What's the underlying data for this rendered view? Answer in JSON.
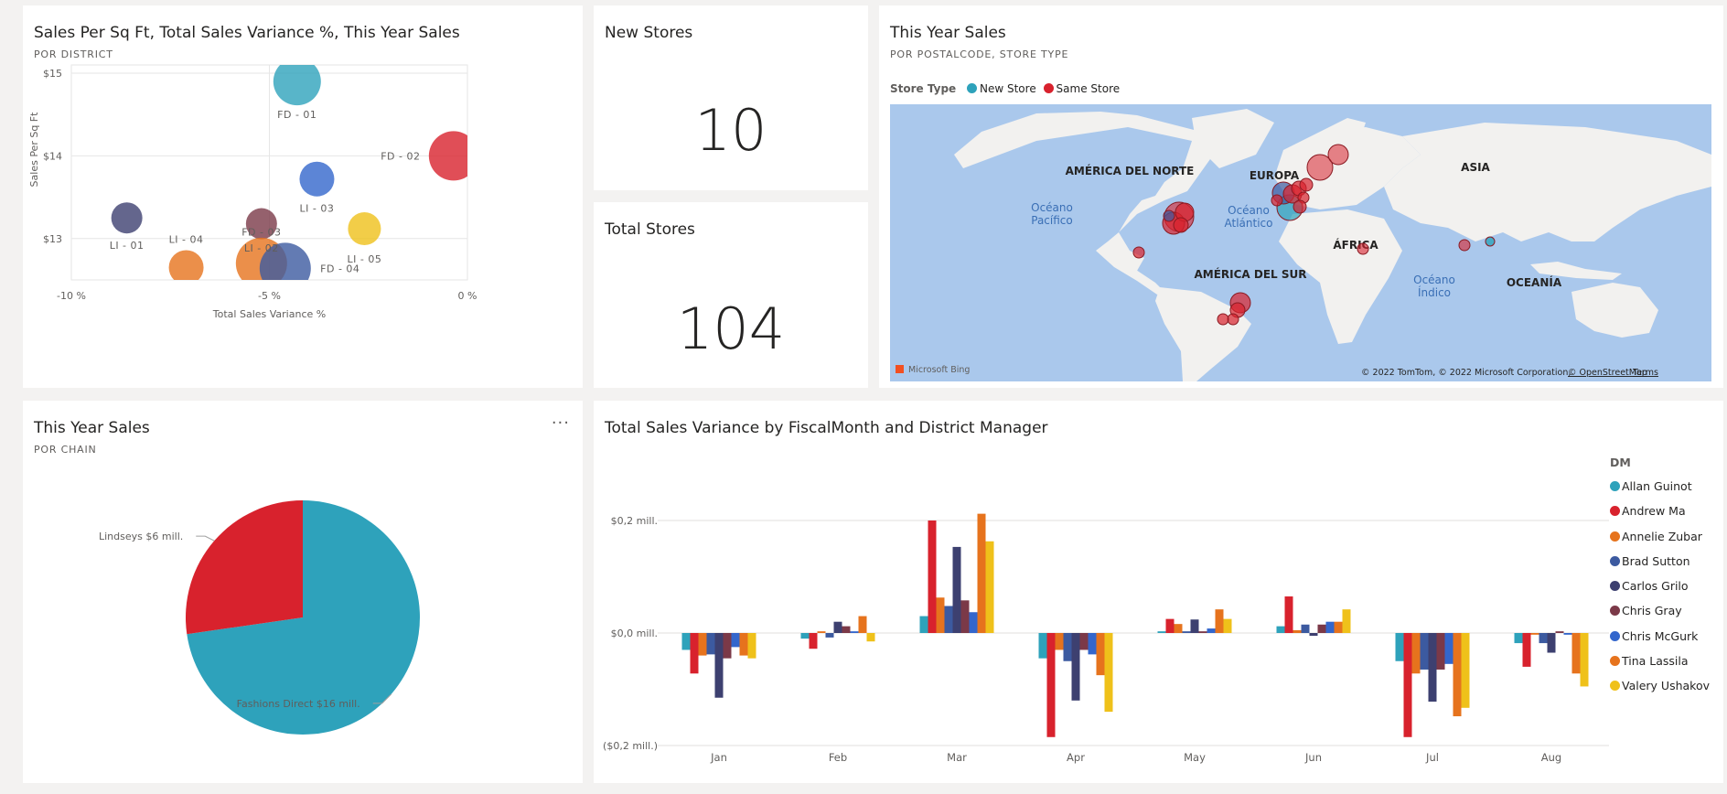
{
  "scatter_tile": {
    "title": "Sales Per Sq Ft, Total Sales Variance %, This Year Sales",
    "subtitle": "POR DISTRICT"
  },
  "new_stores": {
    "title": "New Stores",
    "value": "10"
  },
  "total_stores": {
    "title": "Total Stores",
    "value": "104"
  },
  "map_tile": {
    "title": "This Year Sales",
    "subtitle": "POR POSTALCODE, STORE TYPE",
    "legend_title": "Store Type",
    "legend_items": [
      {
        "label": "New Store",
        "color": "#2ea2bb"
      },
      {
        "label": "Same Store",
        "color": "#d8222d"
      }
    ],
    "labels": {
      "north_america": "AMÉRICA DEL NORTE",
      "europe": "EUROPA",
      "asia": "ASIA",
      "africa": "ÁFRICA",
      "south_america": "AMÉRICA DEL SUR",
      "oceania": "OCEANÍA",
      "pacific": [
        "Océano",
        "Pacífico"
      ],
      "atlantic": [
        "Océano",
        "Atlántico"
      ],
      "indian": [
        "Océano",
        "Índico"
      ]
    },
    "bing": "Microsoft Bing",
    "attribution": "© 2022 TomTom, © 2022 Microsoft Corporation,",
    "osm": "© OpenStreetMap",
    "terms": "Terms"
  },
  "pie_tile": {
    "title": "This Year Sales",
    "subtitle": "POR CHAIN",
    "more": "···"
  },
  "bar_tile": {
    "title": "Total Sales Variance by FiscalMonth and District Manager",
    "legend_title": "DM"
  },
  "colors": {
    "teal": "#2ea2bb",
    "red": "#d8222d",
    "orange": "#e6731d",
    "navy": "#3c5aa0",
    "dark_navy": "#3d4070",
    "maroon": "#7b3948",
    "blue": "#3366cc",
    "yellow": "#efc11a"
  },
  "chart_data": [
    {
      "type": "scatter",
      "title": "Sales Per Sq Ft, Total Sales Variance %, This Year Sales",
      "subtitle": "POR DISTRICT",
      "xlabel": "Total Sales Variance %",
      "ylabel": "Sales Per Sq Ft",
      "xlim": [
        -10,
        0
      ],
      "ylim": [
        12.5,
        15.1
      ],
      "x_ticks": [
        {
          "v": -10,
          "label": "-10 %"
        },
        {
          "v": -5,
          "label": "-5 %"
        },
        {
          "v": 0,
          "label": "0 %"
        }
      ],
      "y_ticks": [
        {
          "v": 13,
          "label": "$13"
        },
        {
          "v": 14,
          "label": "$14"
        },
        {
          "v": 15,
          "label": "$15"
        }
      ],
      "points": [
        {
          "name": "FD - 01",
          "x": -4.3,
          "y": 14.9,
          "r": 26,
          "color": "#2ea2bb",
          "lx": 0,
          "ly": 40
        },
        {
          "name": "FD - 02",
          "x": -0.35,
          "y": 14.0,
          "r": 27,
          "color": "#d8222d",
          "lx": -58,
          "ly": 4
        },
        {
          "name": "LI - 03",
          "x": -3.8,
          "y": 13.72,
          "r": 19,
          "color": "#3366cc",
          "lx": 0,
          "ly": 36
        },
        {
          "name": "LI - 01",
          "x": -8.6,
          "y": 13.25,
          "r": 17,
          "color": "#3d4070",
          "lx": 0,
          "ly": 34
        },
        {
          "name": "FD - 03",
          "x": -5.2,
          "y": 13.18,
          "r": 17,
          "color": "#7b3948",
          "lx": 0,
          "ly": 13
        },
        {
          "name": "LI - 05",
          "x": -2.6,
          "y": 13.12,
          "r": 18,
          "color": "#efc11a",
          "lx": 0,
          "ly": 37
        },
        {
          "name": "LI - 04",
          "x": -7.1,
          "y": 12.65,
          "r": 19,
          "color": "#e6731d",
          "lx": 0,
          "ly": -27
        },
        {
          "name": "LI - 02",
          "x": -5.2,
          "y": 12.7,
          "r": 28,
          "color": "#e6731d",
          "lx": 0,
          "ly": -13
        },
        {
          "name": "FD - 04",
          "x": -4.6,
          "y": 12.64,
          "r": 28,
          "color": "#3c5aa0",
          "lx": 60,
          "ly": 4
        }
      ]
    },
    {
      "type": "pie",
      "title": "This Year Sales",
      "subtitle": "POR CHAIN",
      "slices": [
        {
          "name": "Fashions Direct",
          "value": 16,
          "label": "Fashions Direct $16 mill.",
          "color": "#2ea2bb"
        },
        {
          "name": "Lindseys",
          "value": 6,
          "label": "Lindseys $6 mill.",
          "color": "#d8222d"
        }
      ]
    },
    {
      "type": "bar",
      "title": "Total Sales Variance by FiscalMonth and District Manager",
      "legend_title": "DM",
      "ylim": [
        -0.2,
        0.21
      ],
      "y_ticks": [
        {
          "v": 0.2,
          "label": "$0,2 mill."
        },
        {
          "v": 0,
          "label": "$0,0 mill."
        },
        {
          "v": -0.2,
          "label": "($0,2 mill.)"
        }
      ],
      "categories": [
        "Jan",
        "Feb",
        "Mar",
        "Apr",
        "May",
        "Jun",
        "Jul",
        "Aug"
      ],
      "series": [
        {
          "name": "Allan Guinot",
          "color": "#2ea2bb",
          "values": [
            -0.03,
            -0.01,
            0.03,
            -0.045,
            0.003,
            0.012,
            -0.05,
            -0.018
          ]
        },
        {
          "name": "Andrew Ma",
          "color": "#d8222d",
          "values": [
            -0.072,
            -0.028,
            0.2,
            -0.185,
            0.025,
            0.065,
            -0.185,
            -0.06
          ]
        },
        {
          "name": "Annelie Zubar",
          "color": "#e6731d",
          "values": [
            -0.04,
            0.003,
            0.063,
            -0.03,
            0.016,
            0.005,
            -0.072,
            -0.003
          ]
        },
        {
          "name": "Brad Sutton",
          "color": "#3c5aa0",
          "values": [
            -0.038,
            -0.008,
            0.048,
            -0.05,
            0.003,
            0.015,
            -0.065,
            -0.018
          ]
        },
        {
          "name": "Carlos Grilo",
          "color": "#3d4070",
          "values": [
            -0.115,
            0.02,
            0.153,
            -0.12,
            0.024,
            -0.005,
            -0.122,
            -0.035
          ]
        },
        {
          "name": "Chris Gray",
          "color": "#7b3948",
          "values": [
            -0.045,
            0.012,
            0.058,
            -0.03,
            0.003,
            0.015,
            -0.065,
            0.003
          ]
        },
        {
          "name": "Chris McGurk",
          "color": "#3366cc",
          "values": [
            -0.025,
            0.003,
            0.037,
            -0.038,
            0.008,
            0.02,
            -0.055,
            -0.003
          ]
        },
        {
          "name": "Tina Lassila",
          "color": "#e6731d",
          "values": [
            -0.04,
            0.03,
            0.212,
            -0.075,
            0.042,
            0.02,
            -0.148,
            -0.072
          ]
        },
        {
          "name": "Valery Ushakov",
          "color": "#efc11a",
          "values": [
            -0.045,
            -0.015,
            0.163,
            -0.14,
            0.025,
            0.042,
            -0.133,
            -0.095
          ]
        }
      ]
    }
  ]
}
